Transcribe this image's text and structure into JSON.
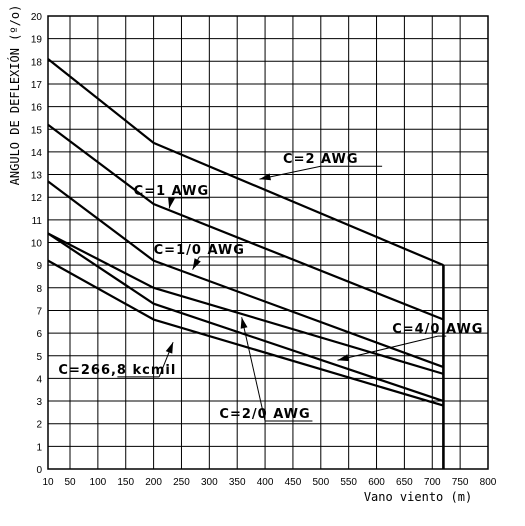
{
  "chart_data": {
    "type": "line",
    "xlabel": "Vano viento (m)",
    "ylabel": "ANGULO DE DEFLEXIÓN (º/o)",
    "xlim": [
      10,
      800
    ],
    "ylim": [
      0,
      20
    ],
    "x_ticks": [
      "10",
      "50",
      "100",
      "150",
      "200",
      "250",
      "300",
      "350",
      "400",
      "450",
      "500",
      "550",
      "600",
      "650",
      "700",
      "750",
      "800"
    ],
    "y_ticks": [
      "0",
      "1",
      "2",
      "3",
      "4",
      "5",
      "6",
      "7",
      "8",
      "9",
      "10",
      "11",
      "12",
      "13",
      "14",
      "15",
      "16",
      "17",
      "18",
      "19",
      "20"
    ],
    "grid": true,
    "limit_line_x": 720,
    "series": [
      {
        "name": "C=2 AWG",
        "x": [
          10,
          200,
          720
        ],
        "y": [
          18.1,
          14.4,
          9.0
        ]
      },
      {
        "name": "C=1 AWG",
        "x": [
          10,
          200,
          720
        ],
        "y": [
          15.2,
          11.7,
          6.6
        ]
      },
      {
        "name": "C=1/0 AWG",
        "x": [
          10,
          200,
          720
        ],
        "y": [
          12.7,
          9.2,
          4.5
        ]
      },
      {
        "name": "C=4/0 AWG",
        "x": [
          10,
          200,
          720
        ],
        "y": [
          10.4,
          8.0,
          4.2
        ]
      },
      {
        "name": "C=2/0 AWG",
        "x": [
          10,
          200,
          720
        ],
        "y": [
          10.4,
          7.3,
          3.0
        ]
      },
      {
        "name": "C=266,8 kcmil",
        "x": [
          10,
          200,
          720
        ],
        "y": [
          9.2,
          6.6,
          2.8
        ]
      }
    ],
    "annotations": [
      {
        "text": "C=2 AWG",
        "series": 0,
        "text_x": 500,
        "text_y": 13.5,
        "point_x": 390,
        "point_y": 12.8,
        "leader_end_x": 610
      },
      {
        "text": "C=1 AWG",
        "series": 1,
        "text_x": 232,
        "text_y": 12.1,
        "point_x": 228,
        "point_y": 11.5,
        "leader_end_x": 300
      },
      {
        "text": "C=1/0 AWG",
        "series": 2,
        "text_x": 282,
        "text_y": 9.5,
        "point_x": 270,
        "point_y": 8.8,
        "leader_end_x": 440
      },
      {
        "text": "C=4/0 AWG",
        "series": 3,
        "text_x": 710,
        "text_y": 6.0,
        "point_x": 530,
        "point_y": 4.8,
        "leader_end_x": 725
      },
      {
        "text": "C=2/0 AWG",
        "series": 4,
        "text_x": 400,
        "text_y": 2.25,
        "point_x": 358,
        "point_y": 6.7,
        "leader_end_x": 485
      },
      {
        "text": "C=266,8 kcmil",
        "series": 5,
        "text_x": 135,
        "text_y": 4.2,
        "point_x": 235,
        "point_y": 5.6,
        "leader_end_x": 210
      }
    ]
  }
}
